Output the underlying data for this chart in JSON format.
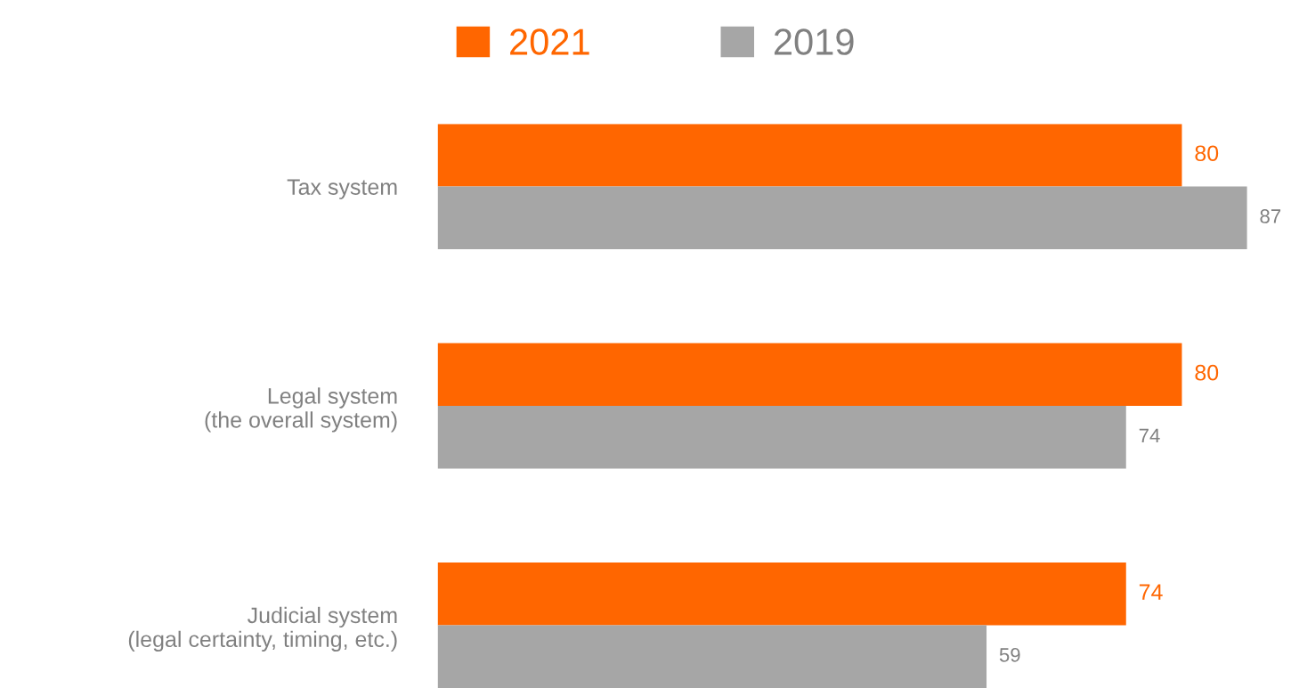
{
  "chart_data": {
    "type": "bar",
    "orientation": "horizontal",
    "categories": [
      "Tax system",
      "Legal system\n(the overall system)",
      "Judicial system\n(legal certainty, timing, etc.)"
    ],
    "series": [
      {
        "name": "2021",
        "color": "#ff6600",
        "values": [
          80,
          80,
          74
        ]
      },
      {
        "name": "2019",
        "color": "#a6a6a6",
        "values": [
          87,
          74,
          59
        ]
      }
    ],
    "data_labels": true,
    "legend": "top",
    "grid": false,
    "tick_labels": "y"
  }
}
